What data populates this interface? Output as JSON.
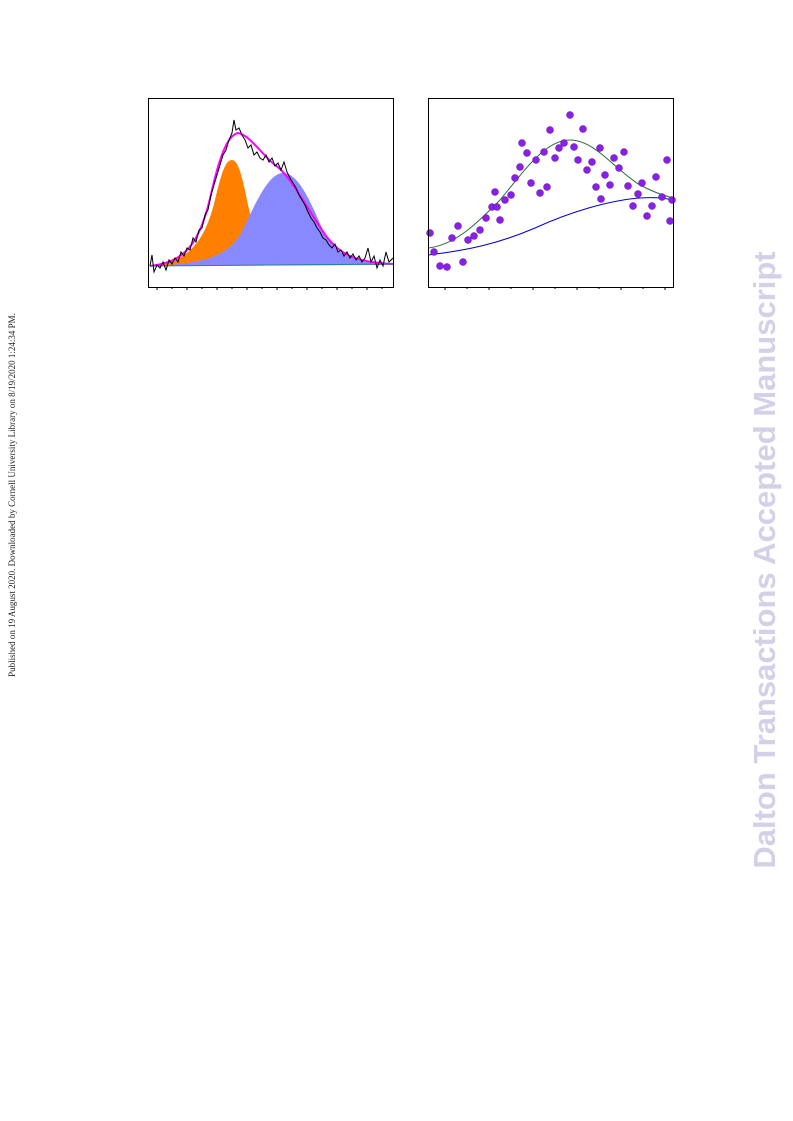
{
  "side_note": "Published on 19 August 2020. Downloaded by Cornell University Library on 8/19/2020 1:24:34 PM.",
  "watermark": "Dalton Transactions Accepted Manuscript"
}
